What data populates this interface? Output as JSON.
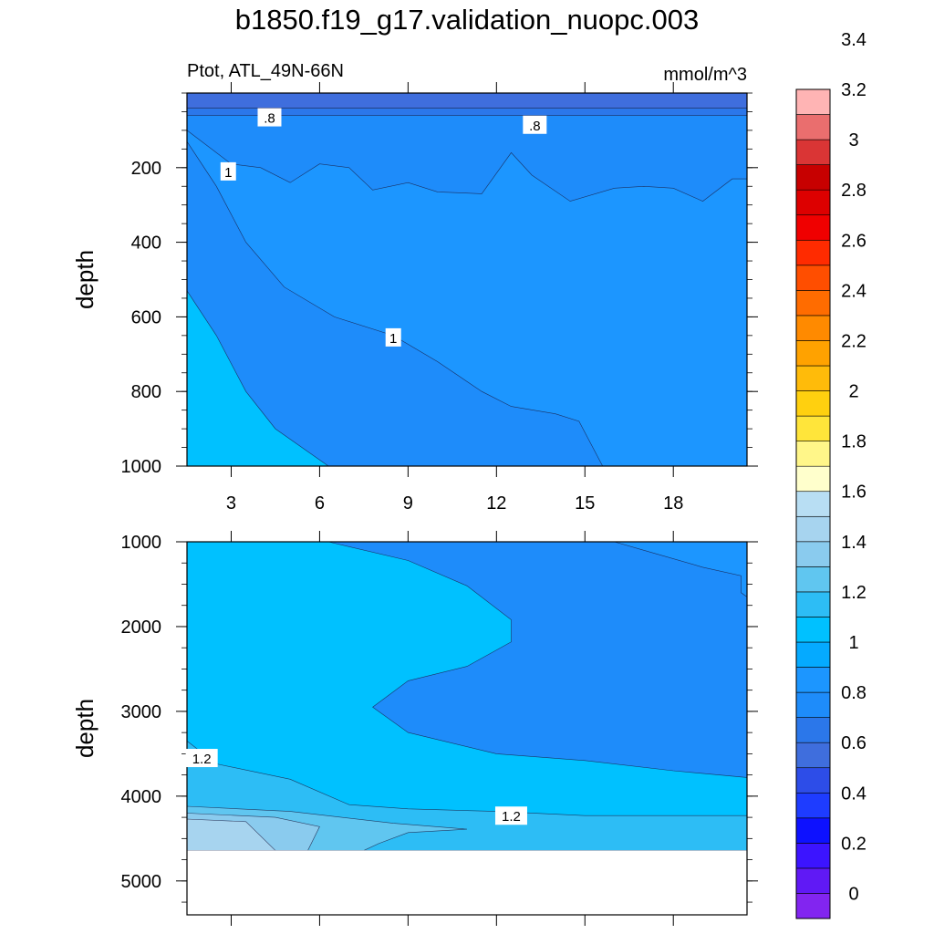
{
  "title": "b1850.f19_g17.validation_nuopc.003",
  "chart_data": {
    "type": "contour",
    "variable_label": "Ptot, ATL_49N-66N",
    "units": "mmol/m^3",
    "x_ticks": [
      3,
      6,
      9,
      12,
      15,
      18
    ],
    "xlim": [
      1.5,
      20.5
    ],
    "colorbar": {
      "labels": [
        "0",
        "0.2",
        "0.4",
        "0.6",
        "0.8",
        "1",
        "1.2",
        "1.4",
        "1.6",
        "1.8",
        "2",
        "2.2",
        "2.4",
        "2.6",
        "2.8",
        "3",
        "3.2",
        "3.4"
      ],
      "colors": [
        "#8225f0",
        "#6019f5",
        "#3c14ff",
        "#0d11ff",
        "#1e3cff",
        "#2d4de8",
        "#3f6edd",
        "#2b77ea",
        "#1e8cfa",
        "#1c96ff",
        "#05aaff",
        "#00c1ff",
        "#2dbdf5",
        "#60c6f0",
        "#8acbee",
        "#a7d4ef",
        "#b8def3",
        "#ffffcc",
        "#fff689",
        "#ffe53a",
        "#ffd00f",
        "#ffbb0a",
        "#ffa200",
        "#ff8a00",
        "#ff6c00",
        "#ff4e00",
        "#ff2b00",
        "#f00000",
        "#dd0000",
        "#c70000",
        "#da3535",
        "#ea6e6e",
        "#ffb4b4"
      ]
    },
    "panels": [
      {
        "name": "upper",
        "ylabel": "depth",
        "ylim": [
          0,
          1000
        ],
        "y_ticks": [
          200,
          400,
          600,
          800,
          1000
        ],
        "contour_labels": [
          {
            "text": ".8",
            "x": 4.3,
            "y": 65
          },
          {
            "text": ".8",
            "x": 13.3,
            "y": 85
          },
          {
            "text": "1",
            "x": 2.9,
            "y": 210
          },
          {
            "text": "1",
            "x": 8.5,
            "y": 655
          }
        ],
        "regions": [
          {
            "level": 0.7,
            "boundary": [
              [
                1.5,
                0
              ],
              [
                20.5,
                0
              ],
              [
                20.5,
                40
              ],
              [
                1.5,
                40
              ]
            ]
          },
          {
            "level": 0.75,
            "boundary": [
              [
                1.5,
                40
              ],
              [
                20.5,
                40
              ],
              [
                20.5,
                60
              ],
              [
                1.5,
                60
              ]
            ]
          },
          {
            "level": 0.8,
            "boundary": [
              [
                1.5,
                60
              ],
              [
                20.5,
                60
              ],
              [
                20.5,
                1000
              ],
              [
                1.5,
                1000
              ]
            ]
          },
          {
            "level": 0.9,
            "boundary": [
              [
                1.5,
                100
              ],
              [
                3,
                190
              ],
              [
                4,
                200
              ],
              [
                5,
                240
              ],
              [
                6,
                190
              ],
              [
                7,
                200
              ],
              [
                7.8,
                260
              ],
              [
                9,
                240
              ],
              [
                10,
                265
              ],
              [
                11.5,
                270
              ],
              [
                12.5,
                160
              ],
              [
                13.2,
                220
              ],
              [
                14.5,
                290
              ],
              [
                16,
                255
              ],
              [
                17,
                250
              ],
              [
                18,
                255
              ],
              [
                19,
                290
              ],
              [
                20,
                230
              ],
              [
                20.5,
                230
              ],
              [
                20.5,
                1000
              ],
              [
                1.5,
                1000
              ]
            ]
          },
          {
            "level": 1.0,
            "boundary": [
              [
                1.5,
                130
              ],
              [
                2.5,
                250
              ],
              [
                3.5,
                400
              ],
              [
                4.8,
                520
              ],
              [
                6.5,
                600
              ],
              [
                8.5,
                650
              ],
              [
                10,
                720
              ],
              [
                11.5,
                800
              ],
              [
                12.5,
                840
              ],
              [
                14,
                860
              ],
              [
                14.8,
                880
              ],
              [
                15.6,
                1000
              ],
              [
                1.5,
                1000
              ]
            ]
          },
          {
            "level": 1.1,
            "boundary": [
              [
                1.5,
                530
              ],
              [
                2.5,
                650
              ],
              [
                3.5,
                800
              ],
              [
                4.5,
                900
              ],
              [
                6.3,
                1000
              ],
              [
                1.5,
                1000
              ]
            ]
          }
        ]
      },
      {
        "name": "lower",
        "ylabel": "depth",
        "ylim": [
          1000,
          5400
        ],
        "y_ticks": [
          1000,
          2000,
          3000,
          4000,
          5000
        ],
        "contour_labels": [
          {
            "text": "1.2",
            "x": 2.0,
            "y": 3550
          },
          {
            "text": "1.2",
            "x": 12.5,
            "y": 4230
          }
        ],
        "masked_below": 4640,
        "regions": [
          {
            "level": 1.0,
            "boundary": [
              [
                1.5,
                1000
              ],
              [
                20.5,
                1000
              ],
              [
                20.5,
                4640
              ],
              [
                1.5,
                4640
              ]
            ]
          },
          {
            "level": 1.1,
            "boundary": [
              [
                1.5,
                1000
              ],
              [
                6.3,
                1000
              ],
              [
                9,
                1220
              ],
              [
                11,
                1520
              ],
              [
                12.5,
                1920
              ],
              [
                12.5,
                2180
              ],
              [
                11,
                2470
              ],
              [
                9,
                2640
              ],
              [
                7.8,
                2950
              ],
              [
                9,
                3250
              ],
              [
                12,
                3500
              ],
              [
                15,
                3580
              ],
              [
                18,
                3700
              ],
              [
                20.5,
                3780
              ],
              [
                20.5,
                4640
              ],
              [
                1.5,
                4640
              ]
            ]
          },
          {
            "level": 0.9,
            "boundary": [
              [
                16,
                1000
              ],
              [
                20.5,
                1000
              ],
              [
                20.5,
                1650
              ],
              [
                20.3,
                1600
              ],
              [
                20.3,
                1400
              ],
              [
                19,
                1300
              ],
              [
                17,
                1100
              ]
            ]
          },
          {
            "level": 1.2,
            "boundary": [
              [
                1.5,
                3350
              ],
              [
                2.5,
                3620
              ],
              [
                5,
                3800
              ],
              [
                7,
                4100
              ],
              [
                9,
                4150
              ],
              [
                12,
                4180
              ],
              [
                15,
                4230
              ],
              [
                20.5,
                4230
              ],
              [
                20.5,
                4640
              ],
              [
                1.5,
                4640
              ]
            ]
          },
          {
            "level": 1.3,
            "boundary": [
              [
                1.5,
                4120
              ],
              [
                5,
                4180
              ],
              [
                8.5,
                4320
              ],
              [
                11,
                4390
              ],
              [
                9,
                4430
              ],
              [
                8,
                4560
              ],
              [
                7.5,
                4640
              ],
              [
                1.5,
                4640
              ]
            ]
          },
          {
            "level": 1.4,
            "boundary": [
              [
                1.5,
                4200
              ],
              [
                4.5,
                4250
              ],
              [
                6,
                4360
              ],
              [
                5.6,
                4640
              ],
              [
                1.5,
                4640
              ]
            ]
          },
          {
            "level": 1.5,
            "boundary": [
              [
                1.5,
                4270
              ],
              [
                3.5,
                4300
              ],
              [
                4.5,
                4640
              ],
              [
                1.5,
                4640
              ]
            ]
          }
        ]
      }
    ]
  }
}
